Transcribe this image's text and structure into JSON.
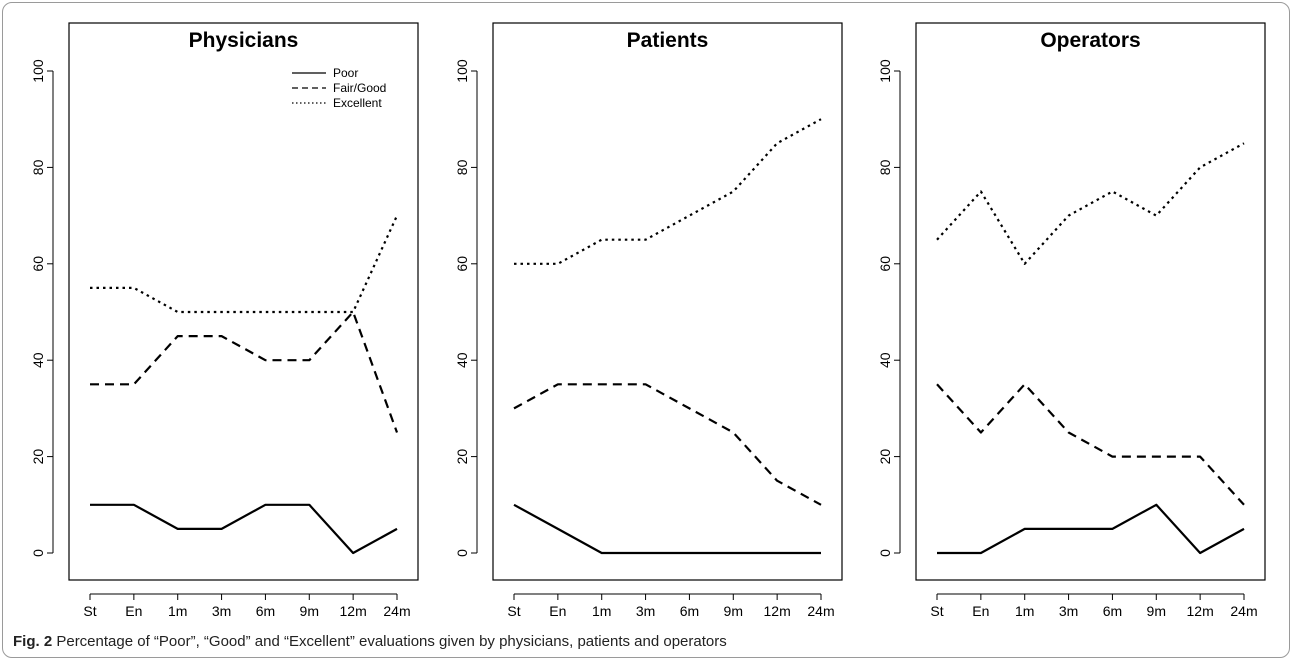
{
  "caption": {
    "label": "Fig. 2",
    "text": "Percentage of “Poor”, “Good” and “Excellent” evaluations given by physicians, patients and operators"
  },
  "chart_data": [
    {
      "type": "line",
      "title": "Physicians",
      "categories": [
        "St",
        "En",
        "1m",
        "3m",
        "6m",
        "9m",
        "12m",
        "24m"
      ],
      "ylim": [
        0,
        100
      ],
      "yticks": [
        "0",
        "20",
        "40",
        "60",
        "80",
        "100"
      ],
      "legend": "top-right",
      "grid": false,
      "series": [
        {
          "name": "Poor",
          "linestyle": "solid",
          "values": [
            10,
            10,
            5,
            5,
            10,
            10,
            0,
            5
          ]
        },
        {
          "name": "Fair/Good",
          "linestyle": "dashed",
          "values": [
            35,
            35,
            45,
            45,
            40,
            40,
            50,
            25
          ]
        },
        {
          "name": "Excellent",
          "linestyle": "dotted",
          "values": [
            55,
            55,
            50,
            50,
            50,
            50,
            50,
            70
          ]
        }
      ]
    },
    {
      "type": "line",
      "title": "Patients",
      "categories": [
        "St",
        "En",
        "1m",
        "3m",
        "6m",
        "9m",
        "12m",
        "24m"
      ],
      "ylim": [
        0,
        100
      ],
      "yticks": [
        "0",
        "20",
        "40",
        "60",
        "80",
        "100"
      ],
      "grid": false,
      "series": [
        {
          "linestyle": "solid",
          "values": [
            10,
            5,
            0,
            0,
            0,
            0,
            0,
            0
          ]
        },
        {
          "linestyle": "dashed",
          "values": [
            30,
            35,
            35,
            35,
            30,
            25,
            15,
            10
          ]
        },
        {
          "linestyle": "dotted",
          "values": [
            60,
            60,
            65,
            65,
            70,
            75,
            85,
            90
          ]
        }
      ]
    },
    {
      "type": "line",
      "title": "Operators",
      "categories": [
        "St",
        "En",
        "1m",
        "3m",
        "6m",
        "9m",
        "12m",
        "24m"
      ],
      "ylim": [
        0,
        100
      ],
      "yticks": [
        "0",
        "20",
        "40",
        "60",
        "80",
        "100"
      ],
      "grid": false,
      "series": [
        {
          "linestyle": "solid",
          "values": [
            0,
            0,
            5,
            5,
            5,
            10,
            0,
            5
          ]
        },
        {
          "linestyle": "dashed",
          "values": [
            35,
            25,
            35,
            25,
            20,
            20,
            20,
            10
          ]
        },
        {
          "linestyle": "dotted",
          "values": [
            65,
            75,
            60,
            70,
            75,
            70,
            80,
            85
          ]
        }
      ]
    }
  ]
}
